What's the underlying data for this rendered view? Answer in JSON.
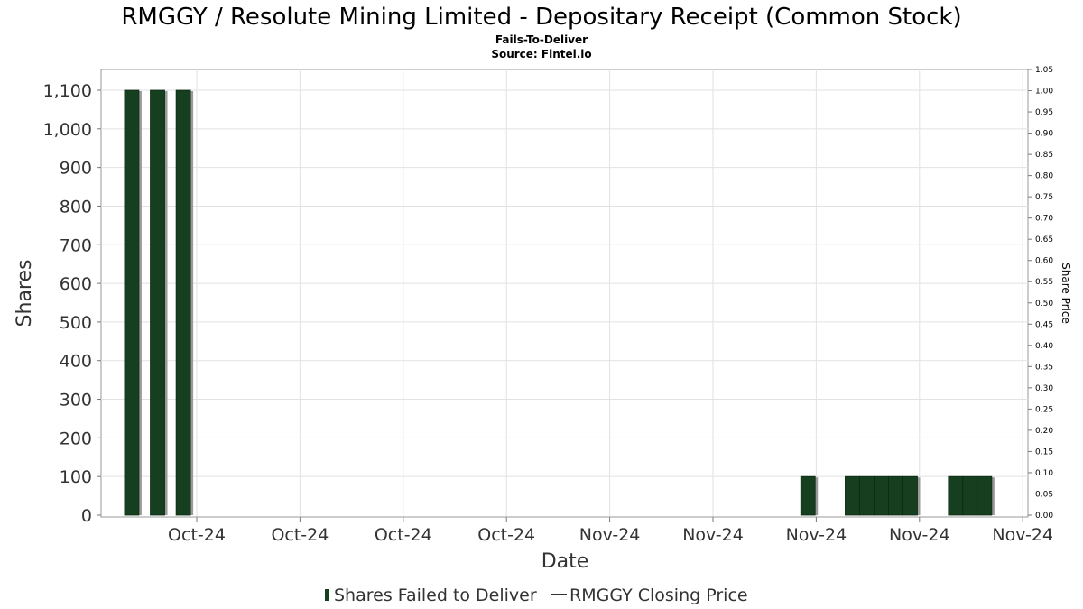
{
  "chart_data": {
    "type": "bar",
    "title": "RMGGY / Resolute Mining Limited - Depositary Receipt (Common Stock)",
    "subtitle": "Fails-To-Deliver",
    "source": "Source: Fintel.io",
    "xlabel": "Date",
    "ylabel": "Shares",
    "y2label": "Share Price",
    "ylim": [
      0,
      1150
    ],
    "y2lim": [
      0,
      1.05
    ],
    "yticks": [
      "0",
      "100",
      "200",
      "300",
      "400",
      "500",
      "600",
      "700",
      "800",
      "900",
      "1,000",
      "1,100"
    ],
    "y2ticks": [
      "0.00",
      "0.05",
      "0.10",
      "0.15",
      "0.20",
      "0.25",
      "0.30",
      "0.35",
      "0.40",
      "0.45",
      "0.50",
      "0.55",
      "0.60",
      "0.65",
      "0.70",
      "0.75",
      "0.80",
      "0.85",
      "0.90",
      "0.95",
      "1.00",
      "1.05"
    ],
    "xticks": [
      "Oct-24",
      "Oct-24",
      "Oct-24",
      "Oct-24",
      "Nov-24",
      "Nov-24",
      "Nov-24",
      "Nov-24",
      "Nov-24"
    ],
    "grid": true,
    "legend_position": "bottom",
    "colors": {
      "bar": "#163f1f",
      "bar_shadow": "#9a9a9a",
      "price_line": "#333333"
    },
    "series": [
      {
        "name": "Shares Failed to Deliver",
        "kind": "bar",
        "bars": [
          {
            "x": 0.3,
            "value": 1100
          },
          {
            "x": 0.55,
            "value": 1100
          },
          {
            "x": 0.8,
            "value": 1100
          },
          {
            "x": 6.85,
            "value": 100
          },
          {
            "x": 7.28,
            "value": 100
          },
          {
            "x": 7.42,
            "value": 100
          },
          {
            "x": 7.56,
            "value": 100
          },
          {
            "x": 7.7,
            "value": 100
          },
          {
            "x": 7.84,
            "value": 100
          },
          {
            "x": 8.28,
            "value": 100
          },
          {
            "x": 8.42,
            "value": 100
          },
          {
            "x": 8.56,
            "value": 100
          }
        ]
      },
      {
        "name": "RMGGY Closing Price",
        "kind": "line",
        "values": []
      }
    ]
  }
}
